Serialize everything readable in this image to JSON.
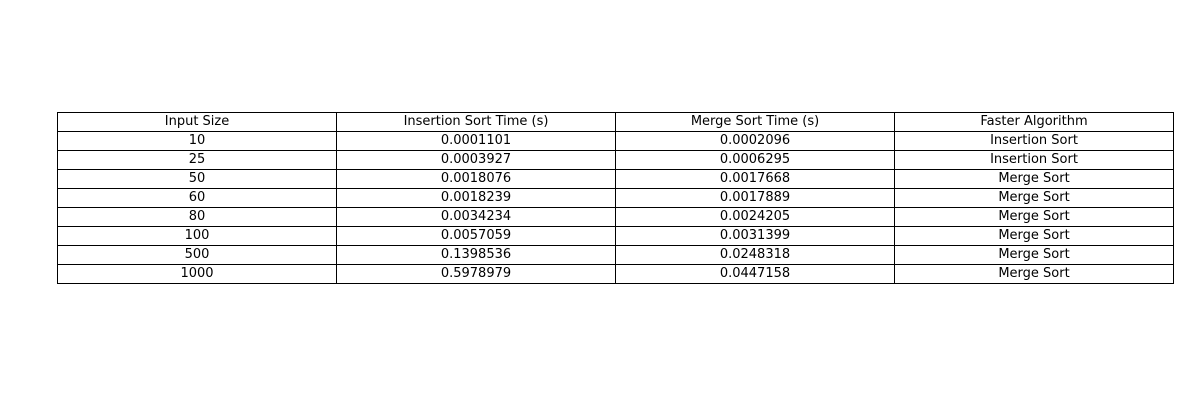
{
  "chart_data": {
    "type": "table",
    "columns": [
      "Input Size",
      "Insertion Sort Time (s)",
      "Merge Sort Time (s)",
      "Faster Algorithm"
    ],
    "rows": [
      [
        "10",
        "0.0001101",
        "0.0002096",
        "Insertion Sort"
      ],
      [
        "25",
        "0.0003927",
        "0.0006295",
        "Insertion Sort"
      ],
      [
        "50",
        "0.0018076",
        "0.0017668",
        "Merge Sort"
      ],
      [
        "60",
        "0.0018239",
        "0.0017889",
        "Merge Sort"
      ],
      [
        "80",
        "0.0034234",
        "0.0024205",
        "Merge Sort"
      ],
      [
        "100",
        "0.0057059",
        "0.0031399",
        "Merge Sort"
      ],
      [
        "500",
        "0.1398536",
        "0.0248318",
        "Merge Sort"
      ],
      [
        "1000",
        "0.5978979",
        "0.0447158",
        "Merge Sort"
      ]
    ]
  }
}
